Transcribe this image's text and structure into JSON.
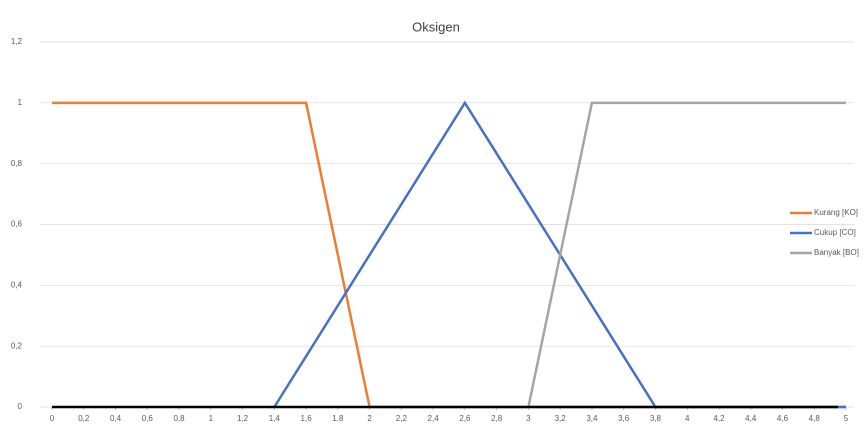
{
  "chart_data": {
    "type": "line",
    "title": "Oksigen",
    "series": [
      {
        "name": "Kurang [KO]",
        "color": "#ed7d31",
        "x": [
          0,
          1.6,
          2,
          5
        ],
        "values": [
          1,
          1,
          0,
          0
        ]
      },
      {
        "name": "Cukup [CO]",
        "color": "#4472c4",
        "x": [
          1.4,
          2.6,
          3.8,
          5
        ],
        "values": [
          0,
          1,
          0,
          0
        ]
      },
      {
        "name": "Banyak [BO]",
        "color": "#a5a5a5",
        "x": [
          3,
          3.4,
          5
        ],
        "values": [
          0,
          1,
          1
        ]
      }
    ],
    "xlim": [
      0,
      5
    ],
    "xticks": [
      0,
      {
        "value": 0.2,
        "label": "0,2"
      },
      {
        "value": 0.4,
        "label": "0,4"
      },
      {
        "value": 0.6,
        "label": "0,6"
      },
      {
        "value": 0.8,
        "label": "0,8"
      },
      1,
      {
        "value": 1.2,
        "label": "1,2"
      },
      {
        "value": 1.4,
        "label": "1,4"
      },
      {
        "value": 1.6,
        "label": "1,6"
      },
      {
        "value": 1.8,
        "label": "1,8"
      },
      2,
      {
        "value": 2.2,
        "label": "2,2"
      },
      {
        "value": 2.4,
        "label": "2,4"
      },
      {
        "value": 2.6,
        "label": "2,6"
      },
      {
        "value": 2.8,
        "label": "2,8"
      },
      3,
      {
        "value": 3.2,
        "label": "3,2"
      },
      {
        "value": 3.4,
        "label": "3,4"
      },
      {
        "value": 3.6,
        "label": "3,6"
      },
      {
        "value": 3.8,
        "label": "3,8"
      },
      4,
      {
        "value": 4.2,
        "label": "4,2"
      },
      {
        "value": 4.4,
        "label": "4,4"
      },
      {
        "value": 4.6,
        "label": "4,6"
      },
      {
        "value": 4.8,
        "label": "4,8"
      },
      5
    ],
    "ylim": [
      0,
      1.2
    ],
    "yticks": [
      0,
      {
        "value": 0.2,
        "label": "0,2"
      },
      {
        "value": 0.4,
        "label": "0,4"
      },
      {
        "value": 0.6,
        "label": "0,6"
      },
      {
        "value": 0.8,
        "label": "0,8"
      },
      1,
      {
        "value": 1.2,
        "label": "1,2"
      }
    ],
    "grid": true,
    "legend": "right"
  }
}
